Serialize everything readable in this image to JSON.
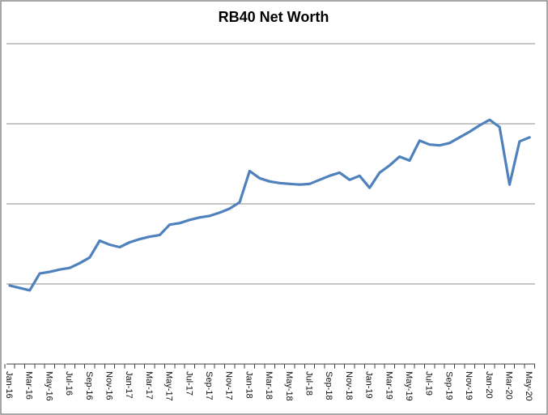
{
  "chart_data": {
    "type": "line",
    "title": "RB40 Net Worth",
    "legend": "none",
    "grid": true,
    "line_color": "#4F81BD",
    "x_label_interval": 2,
    "x": [
      "Jan-16",
      "Feb-16",
      "Mar-16",
      "Apr-16",
      "May-16",
      "Jun-16",
      "Jul-16",
      "Aug-16",
      "Sep-16",
      "Oct-16",
      "Nov-16",
      "Dec-16",
      "Jan-17",
      "Feb-17",
      "Mar-17",
      "Apr-17",
      "May-17",
      "Jun-17",
      "Jul-17",
      "Aug-17",
      "Sep-17",
      "Oct-17",
      "Nov-17",
      "Dec-17",
      "Jan-18",
      "Feb-18",
      "Mar-18",
      "Apr-18",
      "May-18",
      "Jun-18",
      "Jul-18",
      "Aug-18",
      "Sep-18",
      "Oct-18",
      "Nov-18",
      "Dec-18",
      "Jan-19",
      "Feb-19",
      "Mar-19",
      "Apr-19",
      "May-19",
      "Jun-19",
      "Jul-19",
      "Aug-19",
      "Sep-19",
      "Oct-19",
      "Nov-19",
      "Dec-19",
      "Jan-20",
      "Feb-20",
      "Mar-20",
      "Apr-20",
      "May-20"
    ],
    "x_tick_labels_shown": [
      "Jan-16",
      "Mar-16",
      "May-16",
      "Jul-16",
      "Sep-16",
      "Nov-16",
      "Jan-17",
      "Mar-17",
      "May-17",
      "Jul-17",
      "Sep-17",
      "Nov-17",
      "Jan-18",
      "Mar-18",
      "May-18",
      "Jul-18",
      "Sep-18",
      "Nov-18",
      "Jan-19",
      "Mar-19",
      "May-19",
      "Jul-19",
      "Sep-19",
      "Nov-19",
      "Jan-20",
      "Mar-20",
      "May-20"
    ],
    "values": [
      0.98,
      0.95,
      0.92,
      1.13,
      1.15,
      1.18,
      1.2,
      1.26,
      1.33,
      1.54,
      1.49,
      1.46,
      1.52,
      1.56,
      1.59,
      1.61,
      1.74,
      1.76,
      1.8,
      1.83,
      1.85,
      1.89,
      1.94,
      2.02,
      2.41,
      2.32,
      2.28,
      2.26,
      2.25,
      2.24,
      2.25,
      2.3,
      2.35,
      2.39,
      2.3,
      2.35,
      2.2,
      2.39,
      2.48,
      2.59,
      2.54,
      2.79,
      2.74,
      2.73,
      2.76,
      2.83,
      2.9,
      2.98,
      3.05,
      2.96,
      2.24,
      2.78,
      2.83
    ],
    "y_axis": {
      "tick_labels": "none (values hidden)",
      "min": 0,
      "max": 4,
      "gridlines_at": [
        1,
        2,
        3,
        4
      ],
      "units_note": "y values are unlabeled in the chart; series values are expressed in gridline units (1 = one gridline interval above the x-axis)"
    }
  }
}
